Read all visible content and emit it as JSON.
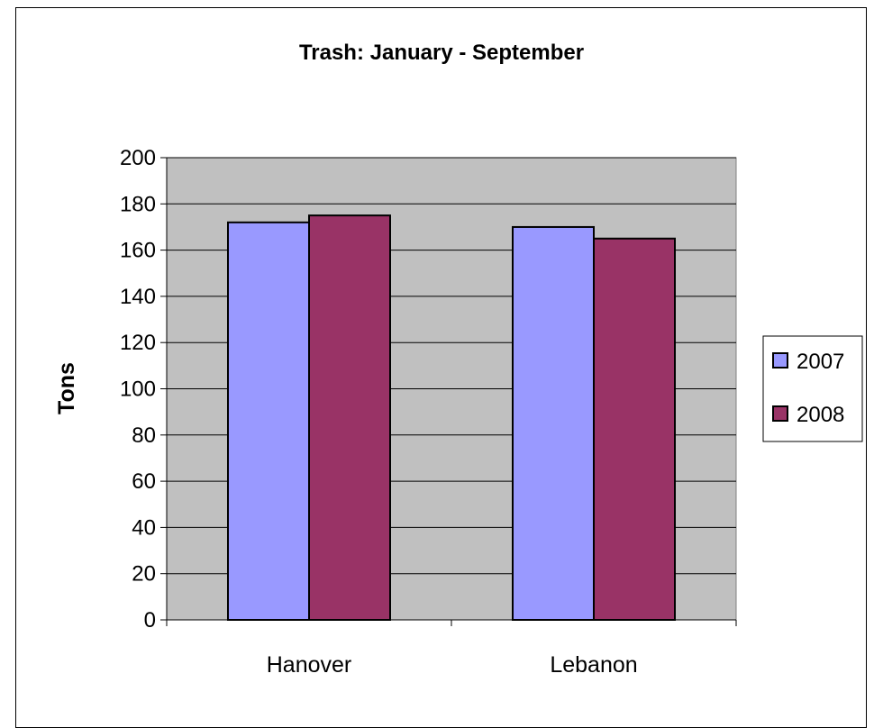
{
  "chart_data": {
    "type": "bar",
    "title": "Trash: January - September",
    "xlabel": "",
    "ylabel": "Tons",
    "categories": [
      "Hanover",
      "Lebanon"
    ],
    "series": [
      {
        "name": "2007",
        "values": [
          172,
          170
        ],
        "color": "#9999ff"
      },
      {
        "name": "2008",
        "values": [
          175,
          165
        ],
        "color": "#993366"
      }
    ],
    "ylim": [
      0,
      200
    ],
    "yticks": [
      0,
      20,
      40,
      60,
      80,
      100,
      120,
      140,
      160,
      180,
      200
    ],
    "grid": true,
    "legend": "right",
    "plot_background": "#c0c0c0"
  }
}
